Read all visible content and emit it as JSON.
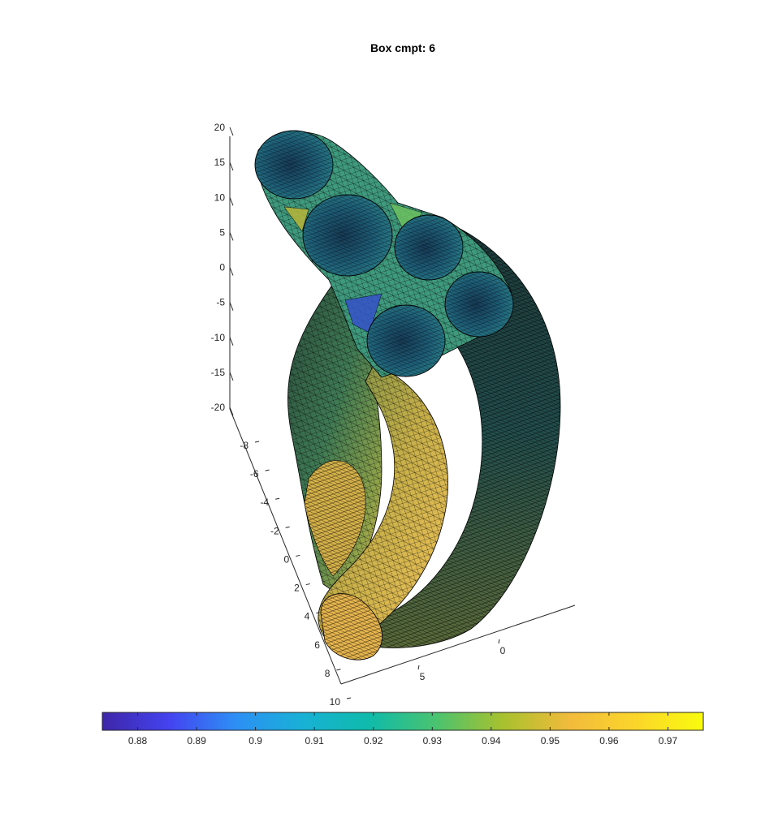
{
  "chart_data": {
    "type": "surface3d",
    "title": "Box cmpt: 6",
    "z_axis": {
      "ticks": [
        "20",
        "15",
        "10",
        "5",
        "0",
        "-5",
        "-10",
        "-15",
        "-20"
      ],
      "range": [
        -20,
        20
      ]
    },
    "y_axis": {
      "ticks": [
        "-8",
        "-6",
        "-4",
        "-2",
        "0",
        "2",
        "4",
        "6",
        "8",
        "10"
      ],
      "range": [
        -8,
        10
      ]
    },
    "x_axis": {
      "ticks": [
        "0",
        "5"
      ]
    },
    "colorbar": {
      "orientation": "horizontal",
      "location": "bottom",
      "colormap": "parula",
      "range": [
        0.874,
        0.976
      ],
      "ticks": [
        "0.88",
        "0.89",
        "0.9",
        "0.91",
        "0.92",
        "0.93",
        "0.94",
        "0.95",
        "0.96",
        "0.97"
      ],
      "colors": [
        "#3e26a8",
        "#4443f0",
        "#2d8ff5",
        "#18b1d6",
        "#0fbbaa",
        "#4bc36f",
        "#a8c12e",
        "#f2bb3c",
        "#fbd62a",
        "#f9fb0e"
      ]
    },
    "mesh": "triangulated",
    "edge_color": "#000000",
    "grid": false
  }
}
